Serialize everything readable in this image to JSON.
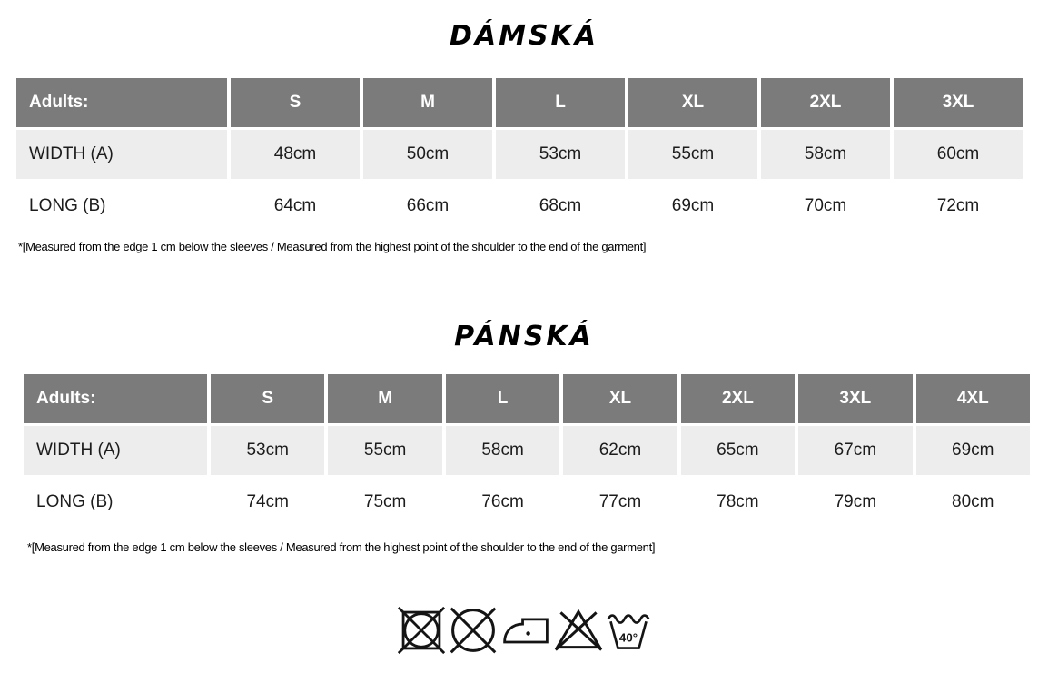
{
  "colors": {
    "header_bg": "#7b7b7b",
    "header_text": "#ffffff",
    "shaded_row_bg": "#ededed",
    "body_text": "#1c1c1c"
  },
  "tables": [
    {
      "title": "DÁMSKÁ",
      "header": {
        "label": "Adults:",
        "sizes": [
          "S",
          "M",
          "L",
          "XL",
          "2XL",
          "3XL"
        ]
      },
      "rows": [
        {
          "label": "WIDTH (A)",
          "values": [
            "48cm",
            "50cm",
            "53cm",
            "55cm",
            "58cm",
            "60cm"
          ]
        },
        {
          "label": "LONG (B)",
          "values": [
            "64cm",
            "66cm",
            "68cm",
            "69cm",
            "70cm",
            "72cm"
          ]
        }
      ],
      "footnote": "*[Measured from the edge 1 cm below the sleeves / Measured from the highest point of the shoulder to the end of the garment]"
    },
    {
      "title": "PÁNSKÁ",
      "header": {
        "label": "Adults:",
        "sizes": [
          "S",
          "M",
          "L",
          "XL",
          "2XL",
          "3XL",
          "4XL"
        ]
      },
      "rows": [
        {
          "label": "WIDTH (A)",
          "values": [
            "53cm",
            "55cm",
            "58cm",
            "62cm",
            "65cm",
            "67cm",
            "69cm"
          ]
        },
        {
          "label": "LONG (B)",
          "values": [
            "74cm",
            "75cm",
            "76cm",
            "77cm",
            "78cm",
            "79cm",
            "80cm"
          ]
        }
      ],
      "footnote": "*[Measured from the edge 1 cm below the sleeves / Measured from the highest point of the shoulder to the end of the garment]"
    }
  ],
  "care_symbols": [
    {
      "name": "do-not-tumble-dry"
    },
    {
      "name": "do-not-dry-clean"
    },
    {
      "name": "iron-low-temperature"
    },
    {
      "name": "do-not-bleach"
    },
    {
      "name": "wash-40-degrees",
      "label": "40°"
    }
  ]
}
